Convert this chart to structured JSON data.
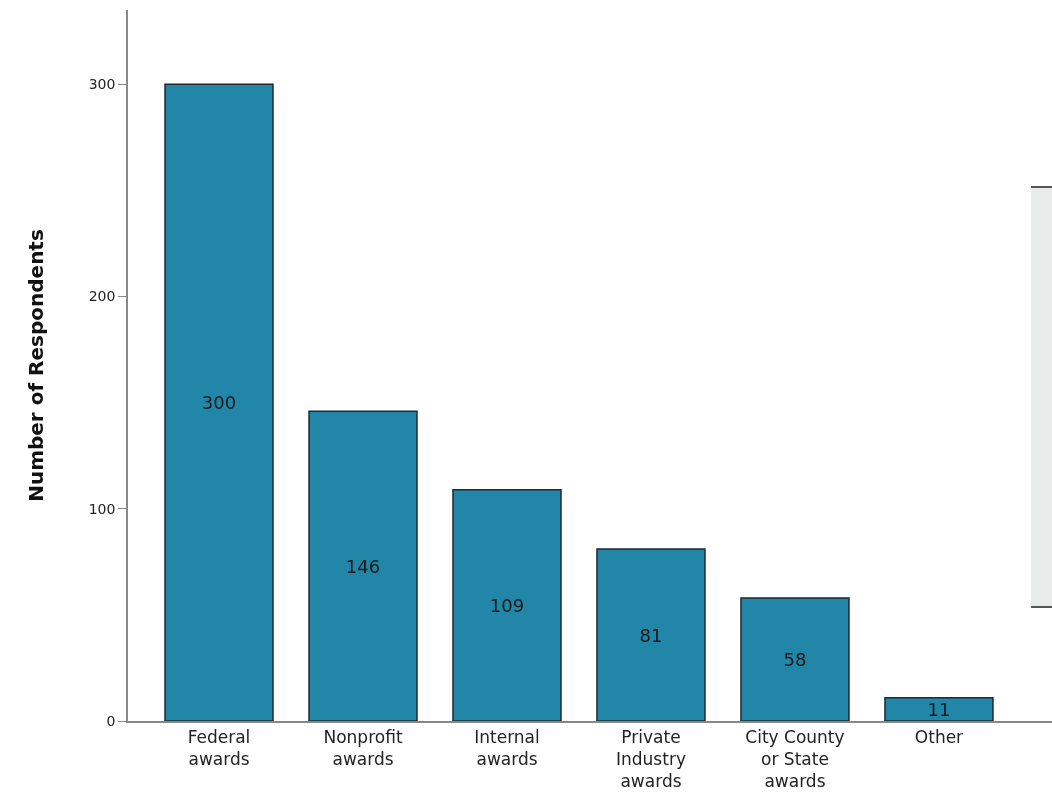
{
  "chart_data": {
    "type": "bar",
    "ylabel": "Number of Respondents",
    "categories": [
      "Federal awards",
      "Nonprofit awards",
      "Internal awards",
      "Private Industry awards",
      "City County or State awards",
      "Other"
    ],
    "values": [
      300,
      146,
      109,
      81,
      58,
      11
    ],
    "color": "#2186a8",
    "ylim": [
      0,
      335
    ],
    "yticks": [
      0,
      100,
      200,
      300
    ],
    "data_labels": true
  }
}
